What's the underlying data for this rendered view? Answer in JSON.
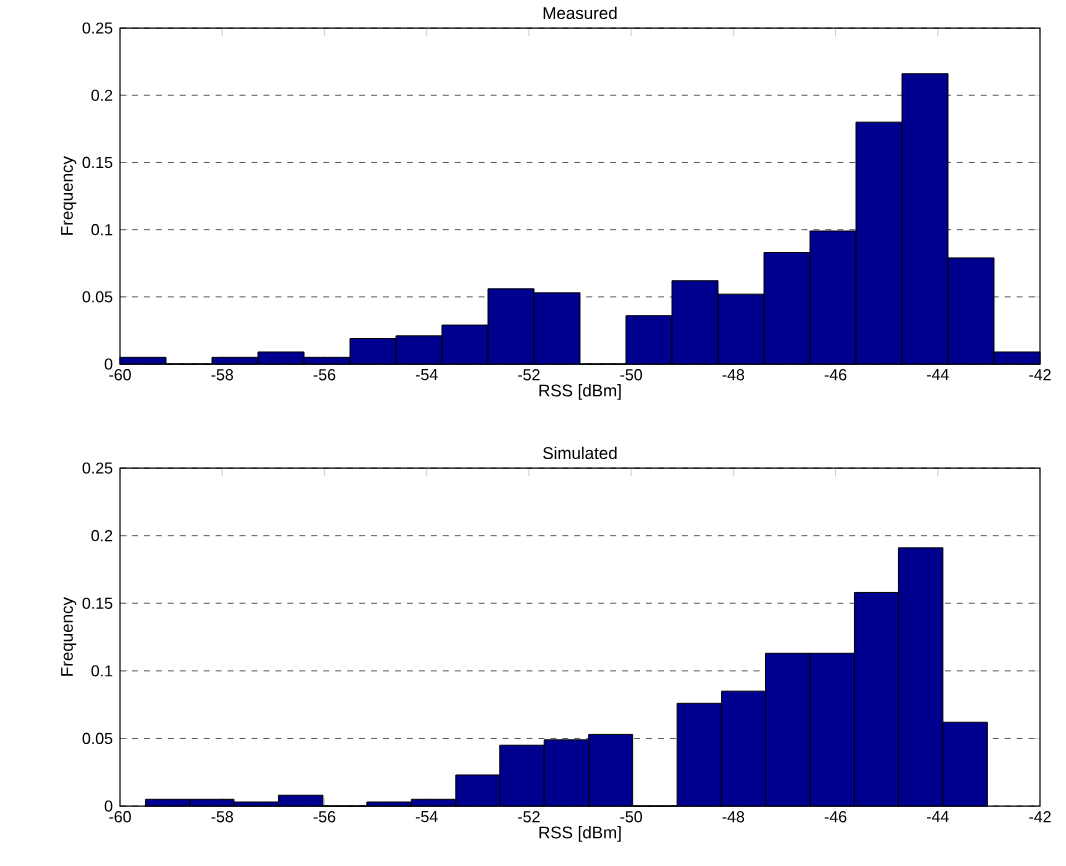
{
  "chart_data": [
    {
      "type": "histogram",
      "title": "Measured",
      "xlabel": "RSS [dBm]",
      "ylabel": "Frequency",
      "color": "#00008f",
      "bins": [
        -60,
        -59.1,
        -58.2,
        -57.3,
        -56.4,
        -55.5,
        -54.6,
        -53.7,
        -52.8,
        -51.9,
        -51,
        -50.1,
        -49.2,
        -48.3,
        -47.4,
        -46.5,
        -45.6,
        -44.7,
        -43.8,
        -42.9,
        -42
      ],
      "values": [
        0.005,
        0,
        0.005,
        0.009,
        0.005,
        0.019,
        0.021,
        0.029,
        0.056,
        0.053,
        0,
        0.036,
        0.062,
        0.052,
        0.083,
        0.099,
        0.18,
        0.216,
        0.079,
        0.009
      ],
      "xlim": [
        -60,
        -42
      ],
      "ylim": [
        0,
        0.25
      ],
      "xticks": [
        -60,
        -58,
        -56,
        -54,
        -52,
        -50,
        -48,
        -46,
        -44,
        -42
      ],
      "yticks": [
        0,
        0.05,
        0.1,
        0.15,
        0.2,
        0.25
      ],
      "grid": "y"
    },
    {
      "type": "histogram",
      "title": "Simulated",
      "xlabel": "RSS [dBm]",
      "ylabel": "Frequency",
      "color": "#00008f",
      "bins": [
        -59.5,
        -58.63,
        -57.77,
        -56.9,
        -56.03,
        -55.17,
        -54.3,
        -53.43,
        -52.57,
        -51.7,
        -50.83,
        -49.97,
        -49.1,
        -48.23,
        -47.37,
        -46.5,
        -45.63,
        -44.77,
        -43.9,
        -43.03
      ],
      "values": [
        0.005,
        0.005,
        0.003,
        0.008,
        0,
        0.003,
        0.005,
        0.023,
        0.045,
        0.049,
        0.053,
        0,
        0.076,
        0.085,
        0.113,
        0.113,
        0.158,
        0.191,
        0.062
      ],
      "xlim": [
        -60,
        -42
      ],
      "ylim": [
        0,
        0.25
      ],
      "xticks": [
        -60,
        -58,
        -56,
        -54,
        -52,
        -50,
        -48,
        -46,
        -44,
        -42
      ],
      "yticks": [
        0,
        0.05,
        0.1,
        0.15,
        0.2,
        0.25
      ],
      "grid": "y"
    }
  ]
}
